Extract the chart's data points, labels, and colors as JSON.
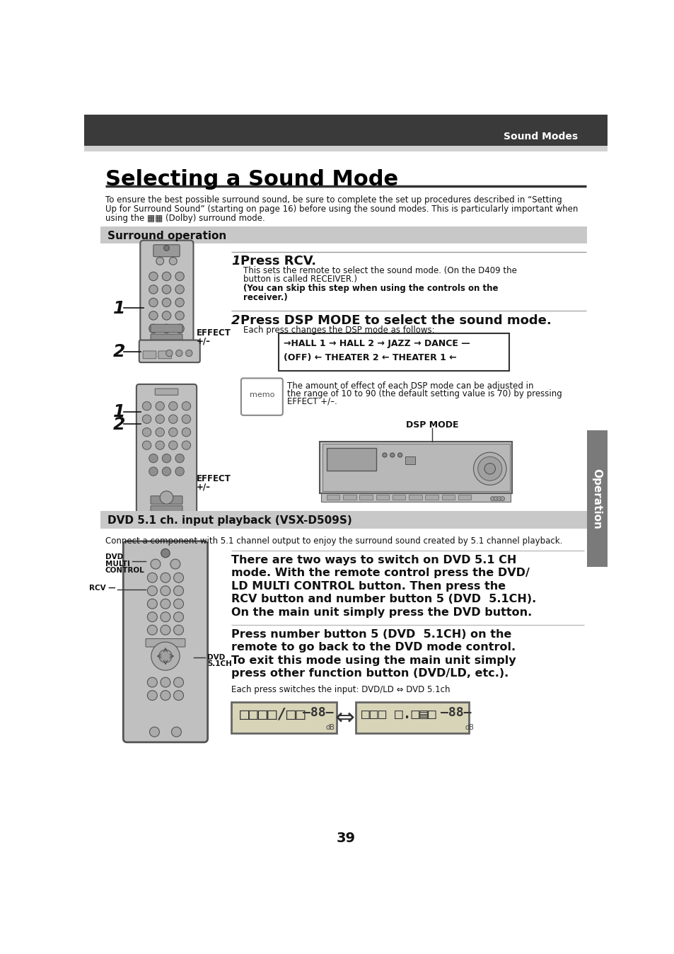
{
  "header_bg": "#3a3a3a",
  "header_text": "Sound Modes",
  "header_text_color": "#ffffff",
  "page_bg": "#ffffff",
  "content_bg": "#ffffff",
  "title": "Selecting a Sound Mode",
  "intro_lines": [
    "To ensure the best possible surround sound, be sure to complete the set up procedures described in “Setting",
    "Up for Surround Sound” (starting on page 16) before using the sound modes. This is particularly important when",
    "using the ▦▦ (Dolby) surround mode."
  ],
  "section1_title": "Surround operation",
  "section1_bg": "#c8c8c8",
  "step1_num": "1",
  "step1_title": "Press RCV.",
  "step1_text1": "This sets the remote to select the sound mode. (On the D409 the",
  "step1_text1b": "button is called RECEIVER.)",
  "step1_text2": "(You can skip this step when using the controls on the",
  "step1_text2b": "receiver.)",
  "step2_num": "2",
  "step2_title": "Press DSP MODE to select the sound mode.",
  "step2_text1": "Each press changes the DSP mode as follows:",
  "cycle_top": "→HALL 1 → HALL 2 → JAZZ → DANCE —",
  "cycle_bot": "(OFF) ← THEATER 2 ← THEATER 1 ←",
  "memo_text1": "The amount of effect of each DSP mode can be adjusted in",
  "memo_text2": "the range of 10 to 90 (the default setting value is 70) by pressing",
  "memo_text3": "EFFECT +/–.",
  "dsp_mode_label": "DSP MODE",
  "label_effect": "EFFECT\n+/–",
  "section2_title": "DVD 5.1 ch. input playback (VSX-D509S)",
  "section2_bg": "#c8c8c8",
  "section2_intro": "Connect a component with 5.1 channel output to enjoy the surround sound created by 5.1 channel playback.",
  "dvd_bold1_lines": [
    "There are two ways to switch on DVD 5.1 CH",
    "mode. With the remote control press the DVD/",
    "LD MULTI CONTROL button. Then press the",
    "RCV button and number button 5 (DVD  5.1CH).",
    "On the main unit simply press the DVD button."
  ],
  "dvd_bold2_lines": [
    "Press number button 5 (DVD  5.1CH) on the",
    "remote to go back to the DVD mode control.",
    "To exit this mode using the main unit simply",
    "press other function button (DVD/LD, etc.)."
  ],
  "dvd_text3": "Each press switches the input: DVD/LD ⇔ DVD 5.1ch",
  "label_dvd_multi": "DVD\nMULTI\nCONTROL",
  "label_rcv": "RCV",
  "label_dvd51": "DVD\n5.1CH",
  "page_number": "39",
  "right_tab_text": "Operation",
  "right_tab_bg": "#7a7a7a",
  "remote_body": "#c0c0c0",
  "remote_dark": "#888888",
  "remote_btn": "#a0a0a0"
}
